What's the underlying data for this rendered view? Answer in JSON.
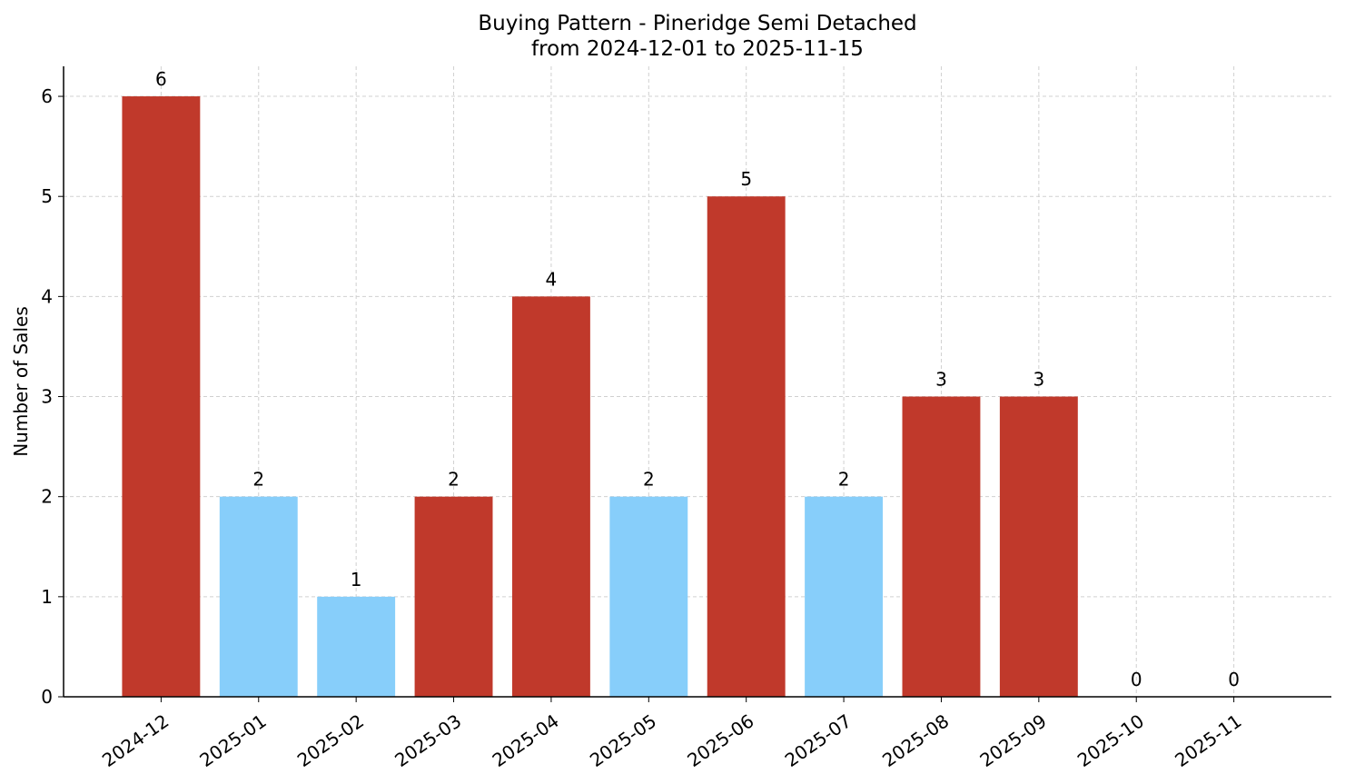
{
  "chart_data": {
    "type": "bar",
    "title": "Buying Pattern - Pineridge Semi Detached",
    "subtitle": "from 2024-12-01 to 2025-11-15",
    "y_label": "Number of Sales",
    "categories": [
      "2024-12",
      "2025-01",
      "2025-02",
      "2025-03",
      "2025-04",
      "2025-05",
      "2025-06",
      "2025-07",
      "2025-08",
      "2025-09",
      "2025-10",
      "2025-11"
    ],
    "values": [
      6,
      2,
      1,
      2,
      4,
      2,
      5,
      2,
      3,
      3,
      0,
      0
    ],
    "colors": [
      "#c0392b",
      "#87cefa",
      "#87cefa",
      "#c0392b",
      "#c0392b",
      "#87cefa",
      "#c0392b",
      "#87cefa",
      "#c0392b",
      "#c0392b",
      "#c0392b",
      "#c0392b"
    ],
    "ylim": [
      0,
      6.3
    ],
    "yticks": [
      0,
      1,
      2,
      3,
      4,
      5,
      6
    ],
    "grid": true
  }
}
